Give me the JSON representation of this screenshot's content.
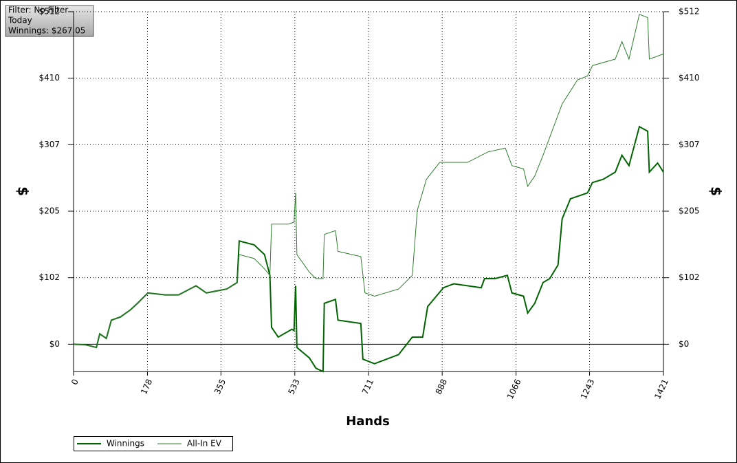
{
  "chart_data": {
    "type": "line",
    "info": [
      "Filter: No Filter",
      "Today",
      "Winnings: $267.05"
    ],
    "xlabel": "Hands",
    "ylabel": "$",
    "y2label": "$",
    "xlim": [
      0,
      1421
    ],
    "xticks": [
      0,
      178,
      355,
      533,
      711,
      888,
      1066,
      1243,
      1421
    ],
    "ylim": [
      -42,
      512
    ],
    "yticks": [
      {
        "value": 0,
        "label": "$0"
      },
      {
        "value": 102.4,
        "label": "$102"
      },
      {
        "value": 204.8,
        "label": "$205"
      },
      {
        "value": 307.2,
        "label": "$307"
      },
      {
        "value": 409.6,
        "label": "$410"
      },
      {
        "value": 512,
        "label": "$512"
      }
    ],
    "grid": true,
    "series": [
      {
        "name": "Winnings",
        "color": "#006400",
        "width": 2,
        "x": [
          0,
          30,
          55,
          63,
          79,
          91,
          113,
          137,
          154,
          179,
          220,
          253,
          295,
          320,
          369,
          394,
          399,
          435,
          460,
          473,
          477,
          493,
          526,
          531,
          535,
          538,
          568,
          584,
          601,
          604,
          631,
          637,
          692,
          697,
          725,
          783,
          816,
          841,
          853,
          874,
          891,
          916,
          982,
          990,
          1015,
          1045,
          1056,
          1084,
          1094,
          1111,
          1131,
          1147,
          1167,
          1177,
          1197,
          1238,
          1250,
          1276,
          1305,
          1321,
          1338,
          1363,
          1383,
          1387,
          1407,
          1421
        ],
        "values": [
          0,
          -1,
          -5,
          16,
          9,
          37,
          42,
          53,
          63,
          79,
          76,
          76,
          90,
          79,
          85,
          95,
          159,
          153,
          138,
          106,
          26,
          11,
          23,
          21,
          90,
          -5,
          -21,
          -37,
          -42,
          63,
          69,
          37,
          32,
          -23,
          -30,
          -16,
          11,
          11,
          58,
          74,
          87,
          93,
          87,
          101,
          101,
          106,
          79,
          74,
          48,
          63,
          95,
          101,
          122,
          193,
          224,
          233,
          249,
          254,
          265,
          291,
          275,
          335,
          328,
          265,
          279,
          265
        ]
      },
      {
        "name": "All-In EV",
        "color": "#2e7d2e",
        "width": 1,
        "x": [
          0,
          30,
          55,
          63,
          79,
          91,
          113,
          137,
          154,
          179,
          220,
          253,
          295,
          320,
          369,
          394,
          399,
          435,
          460,
          473,
          477,
          518,
          531,
          535,
          538,
          568,
          584,
          601,
          604,
          631,
          637,
          692,
          702,
          725,
          783,
          816,
          828,
          850,
          882,
          949,
          998,
          1040,
          1056,
          1084,
          1094,
          1111,
          1131,
          1177,
          1214,
          1238,
          1250,
          1305,
          1321,
          1338,
          1363,
          1383,
          1387,
          1421
        ],
        "values": [
          0,
          -1,
          -5,
          16,
          9,
          37,
          42,
          53,
          63,
          79,
          76,
          76,
          90,
          79,
          85,
          95,
          138,
          132,
          116,
          106,
          185,
          185,
          188,
          233,
          138,
          111,
          101,
          101,
          169,
          175,
          143,
          135,
          79,
          74,
          85,
          106,
          206,
          254,
          280,
          280,
          296,
          302,
          275,
          270,
          243,
          259,
          291,
          370,
          407,
          413,
          429,
          439,
          466,
          439,
          508,
          503,
          439,
          447
        ]
      }
    ]
  }
}
